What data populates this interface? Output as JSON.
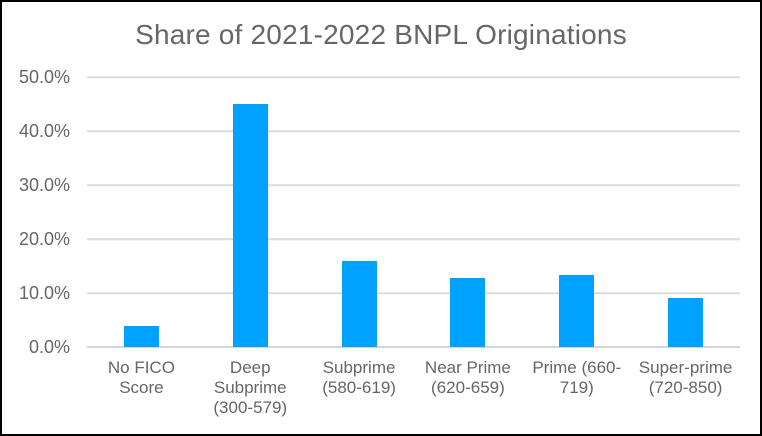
{
  "chart_data": {
    "type": "bar",
    "title": "Share of 2021-2022 BNPL Originations",
    "categories": [
      "No FICO Score",
      "Deep Subprime (300-579)",
      "Subprime (580-619)",
      "Near Prime (620-659)",
      "Prime (660-719)",
      "Super-prime (720-850)"
    ],
    "values": [
      3.8,
      45.0,
      16.0,
      12.8,
      13.3,
      9.0
    ],
    "tick_labels_wrapped": [
      "No FICO\nScore",
      "Deep\nSubprime\n(300-579)",
      "Subprime\n(580-619)",
      "Near Prime\n(620-659)",
      "Prime (660-\n719)",
      "Super-prime\n(720-850)"
    ],
    "xlabel": "",
    "ylabel": "",
    "ylim": [
      0,
      50
    ],
    "yticks": [
      "50.0%",
      "40.0%",
      "30.0%",
      "20.0%",
      "10.0%",
      "0.0%"
    ],
    "grid": "horizontal",
    "legend": "none"
  },
  "colors": {
    "bar": "#00A2FF",
    "gridline": "#DCDCDC",
    "text": "#666666",
    "background": "#FFFFFF",
    "frame_border": "#000000"
  }
}
